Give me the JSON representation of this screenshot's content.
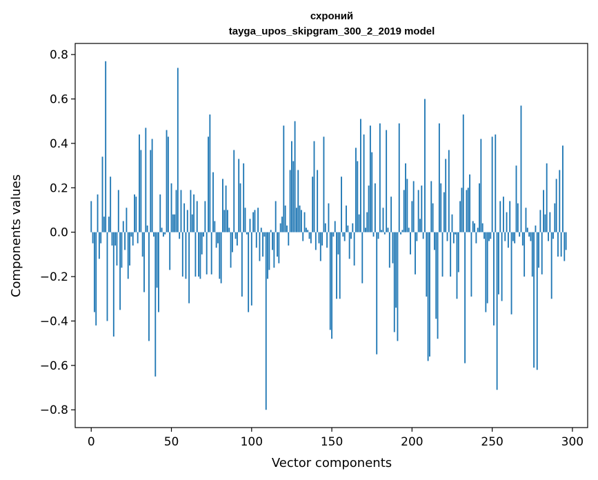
{
  "chart_data": {
    "type": "bar",
    "title_line1": "схроний",
    "title_line2": "tayga_upos_skipgram_300_2_2019 model",
    "xlabel": "Vector components",
    "ylabel": "Components values",
    "xlim": [
      -10,
      309.5
    ],
    "ylim": [
      -0.88,
      0.85
    ],
    "xticks": [
      0,
      50,
      100,
      150,
      200,
      250,
      300
    ],
    "xtick_labels": [
      "0",
      "50",
      "100",
      "150",
      "200",
      "250",
      "300"
    ],
    "yticks": [
      0.8,
      0.6,
      0.4,
      0.2,
      0.0,
      -0.2,
      -0.4,
      -0.6,
      -0.8
    ],
    "ytick_labels": [
      "0.8",
      "0.6",
      "0.4",
      "0.2",
      "0.0",
      "−0.2",
      "−0.4",
      "−0.6",
      "−0.8"
    ],
    "bar_color": "#1f77b4",
    "values": [
      0.14,
      -0.05,
      -0.36,
      -0.42,
      0.17,
      -0.12,
      -0.05,
      0.34,
      0.07,
      0.77,
      -0.4,
      0.07,
      0.25,
      -0.06,
      -0.47,
      -0.06,
      -0.15,
      0.19,
      -0.35,
      -0.16,
      0.05,
      -0.08,
      0.11,
      -0.21,
      -0.15,
      -0.02,
      -0.06,
      0.17,
      0.16,
      -0.05,
      0.44,
      0.37,
      -0.11,
      -0.27,
      0.47,
      0.03,
      -0.49,
      0.37,
      0.42,
      -0.02,
      -0.65,
      -0.25,
      -0.36,
      0.17,
      0.02,
      -0.02,
      -0.01,
      0.46,
      0.43,
      -0.17,
      0.22,
      0.08,
      0.08,
      0.19,
      0.74,
      -0.03,
      0.19,
      -0.2,
      0.13,
      -0.21,
      0.1,
      -0.32,
      0.19,
      0.08,
      0.17,
      -0.2,
      0.14,
      -0.2,
      -0.21,
      -0.1,
      -0.02,
      0.14,
      -0.19,
      0.43,
      0.53,
      -0.19,
      0.27,
      0.05,
      -0.07,
      -0.05,
      -0.21,
      -0.23,
      0.24,
      0.1,
      0.21,
      0.1,
      0.02,
      -0.16,
      -0.09,
      0.37,
      -0.03,
      -0.06,
      0.33,
      0.22,
      -0.29,
      0.31,
      0.11,
      -0.01,
      -0.36,
      0.06,
      -0.33,
      0.09,
      0.1,
      -0.07,
      0.11,
      -0.13,
      0.02,
      -0.11,
      -0.02,
      -0.8,
      -0.21,
      -0.17,
      0.01,
      -0.08,
      -0.16,
      0.14,
      -0.11,
      -0.14,
      0.04,
      0.07,
      0.48,
      0.12,
      0.03,
      -0.06,
      0.28,
      0.41,
      0.32,
      0.5,
      0.11,
      0.28,
      0.12,
      0.1,
      -0.04,
      0.09,
      0.02,
      0.01,
      -0.03,
      -0.05,
      0.25,
      0.41,
      -0.08,
      0.28,
      -0.05,
      -0.13,
      -0.06,
      0.43,
      0.04,
      -0.07,
      0.13,
      -0.44,
      -0.48,
      -0.02,
      0.05,
      -0.3,
      -0.1,
      -0.3,
      0.25,
      -0.02,
      -0.04,
      0.12,
      0.03,
      -0.12,
      -0.03,
      0.04,
      -0.15,
      0.38,
      0.32,
      0.08,
      0.51,
      -0.23,
      0.44,
      0.02,
      0.09,
      0.21,
      0.48,
      0.36,
      -0.02,
      0.22,
      -0.55,
      -0.03,
      0.49,
      0.01,
      0.11,
      -0.01,
      0.46,
      0.02,
      -0.16,
      0.16,
      -0.14,
      -0.45,
      -0.34,
      -0.49,
      0.49,
      -0.01,
      0.01,
      0.19,
      0.31,
      0.24,
      0.02,
      -0.1,
      0.14,
      0.23,
      -0.19,
      -0.04,
      0.19,
      0.06,
      0.21,
      -0.03,
      0.6,
      -0.29,
      -0.58,
      -0.56,
      0.23,
      0.13,
      -0.08,
      -0.39,
      -0.48,
      0.49,
      0.22,
      -0.2,
      0.18,
      0.33,
      -0.04,
      0.37,
      -0.2,
      0.08,
      -0.05,
      -0.01,
      -0.3,
      -0.18,
      0.14,
      0.2,
      0.53,
      -0.59,
      0.19,
      0.2,
      0.26,
      -0.29,
      0.05,
      0.04,
      -0.05,
      0.02,
      0.22,
      0.42,
      0.04,
      -0.03,
      -0.36,
      -0.32,
      -0.04,
      -0.03,
      0.43,
      -0.42,
      0.44,
      -0.71,
      -0.28,
      0.14,
      -0.31,
      0.16,
      -0.04,
      0.09,
      -0.07,
      0.14,
      -0.37,
      -0.04,
      -0.05,
      0.3,
      0.13,
      -0.02,
      0.57,
      -0.06,
      -0.2,
      0.11,
      0.02,
      -0.02,
      -0.04,
      -0.2,
      -0.61,
      0.03,
      -0.62,
      -0.16,
      0.1,
      -0.19,
      0.19,
      0.08,
      0.31,
      -0.04,
      0.09,
      -0.3,
      -0.03,
      0.13,
      0.24,
      -0.11,
      0.28,
      -0.11,
      0.39,
      -0.13,
      -0.08
    ]
  }
}
